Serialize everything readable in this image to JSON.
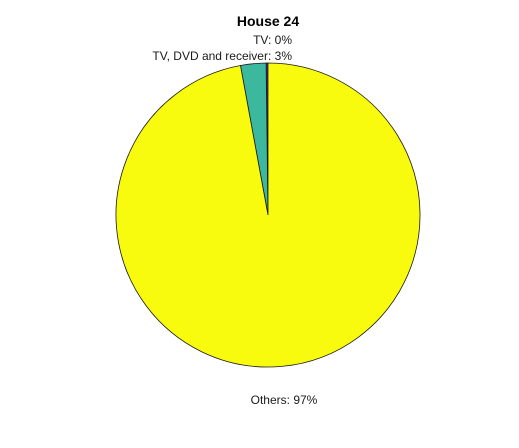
{
  "chart_data": {
    "type": "pie",
    "title": "House 24",
    "labels": [
      "TV: 0%",
      "TV, DVD and receiver: 3%",
      "Others: 97%"
    ],
    "categories": [
      "TV",
      "TV, DVD and receiver",
      "Others"
    ],
    "values": [
      0.2,
      2.7,
      97.1
    ],
    "colors": [
      "#3e26a8",
      "#3cb89f",
      "#f9fb0e"
    ]
  }
}
